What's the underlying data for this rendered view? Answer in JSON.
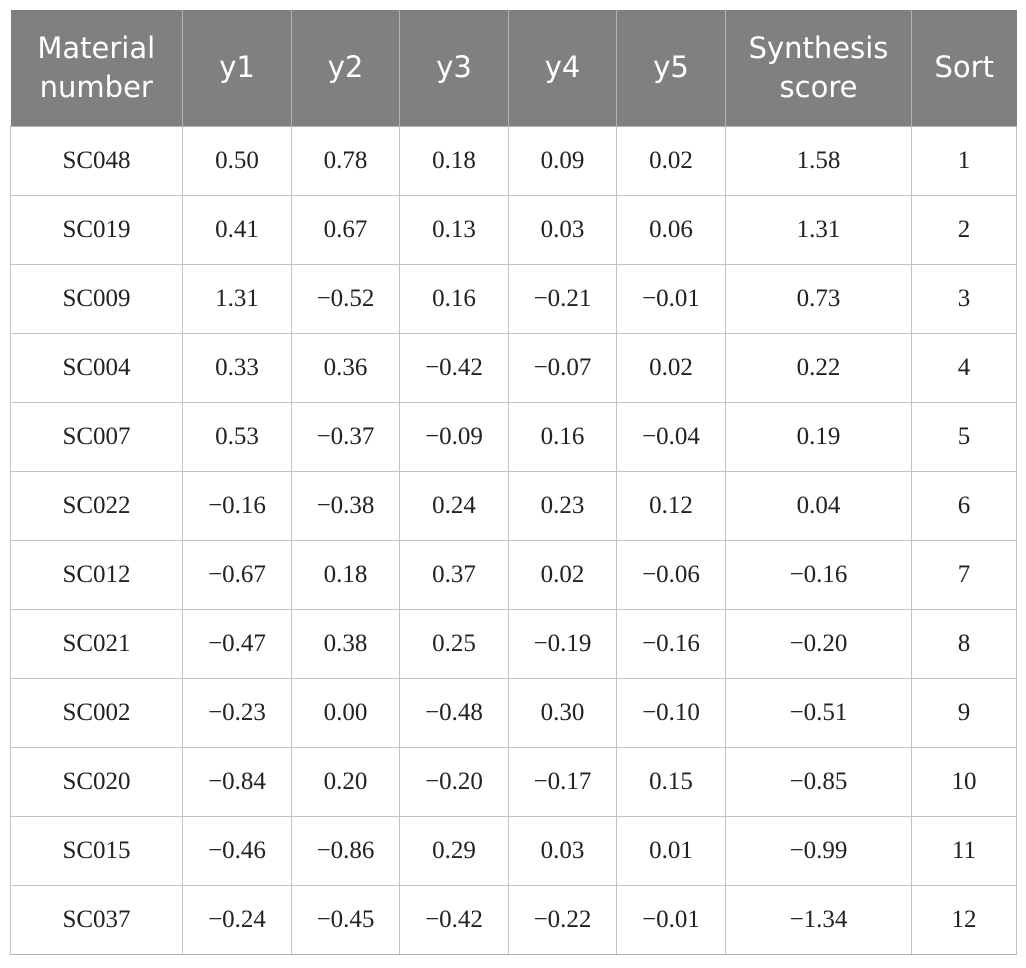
{
  "table": {
    "headers": [
      [
        "Material",
        "number"
      ],
      [
        "y1"
      ],
      [
        "y2"
      ],
      [
        "y3"
      ],
      [
        "y4"
      ],
      [
        "y5"
      ],
      [
        "Synthesis",
        "score"
      ],
      [
        "Sort"
      ]
    ],
    "rows": [
      [
        "SC048",
        "0.50",
        "0.78",
        "0.18",
        "0.09",
        "0.02",
        "1.58",
        "1"
      ],
      [
        "SC019",
        "0.41",
        "0.67",
        "0.13",
        "0.03",
        "0.06",
        "1.31",
        "2"
      ],
      [
        "SC009",
        "1.31",
        "−0.52",
        "0.16",
        "−0.21",
        "−0.01",
        "0.73",
        "3"
      ],
      [
        "SC004",
        "0.33",
        "0.36",
        "−0.42",
        "−0.07",
        "0.02",
        "0.22",
        "4"
      ],
      [
        "SC007",
        "0.53",
        "−0.37",
        "−0.09",
        "0.16",
        "−0.04",
        "0.19",
        "5"
      ],
      [
        "SC022",
        "−0.16",
        "−0.38",
        "0.24",
        "0.23",
        "0.12",
        "0.04",
        "6"
      ],
      [
        "SC012",
        "−0.67",
        "0.18",
        "0.37",
        "0.02",
        "−0.06",
        "−0.16",
        "7"
      ],
      [
        "SC021",
        "−0.47",
        "0.38",
        "0.25",
        "−0.19",
        "−0.16",
        "−0.20",
        "8"
      ],
      [
        "SC002",
        "−0.23",
        "0.00",
        "−0.48",
        "0.30",
        "−0.10",
        "−0.51",
        "9"
      ],
      [
        "SC020",
        "−0.84",
        "0.20",
        "−0.20",
        "−0.17",
        "0.15",
        "−0.85",
        "10"
      ],
      [
        "SC015",
        "−0.46",
        "−0.86",
        "0.29",
        "0.03",
        "0.01",
        "−0.99",
        "11"
      ],
      [
        "SC037",
        "−0.24",
        "−0.45",
        "−0.42",
        "−0.22",
        "−0.01",
        "−1.34",
        "12"
      ]
    ]
  },
  "colors": {
    "header_background": "#808080",
    "header_text": "#ffffff",
    "grid_line": "#c4c4c4",
    "cell_text": "#222222"
  }
}
